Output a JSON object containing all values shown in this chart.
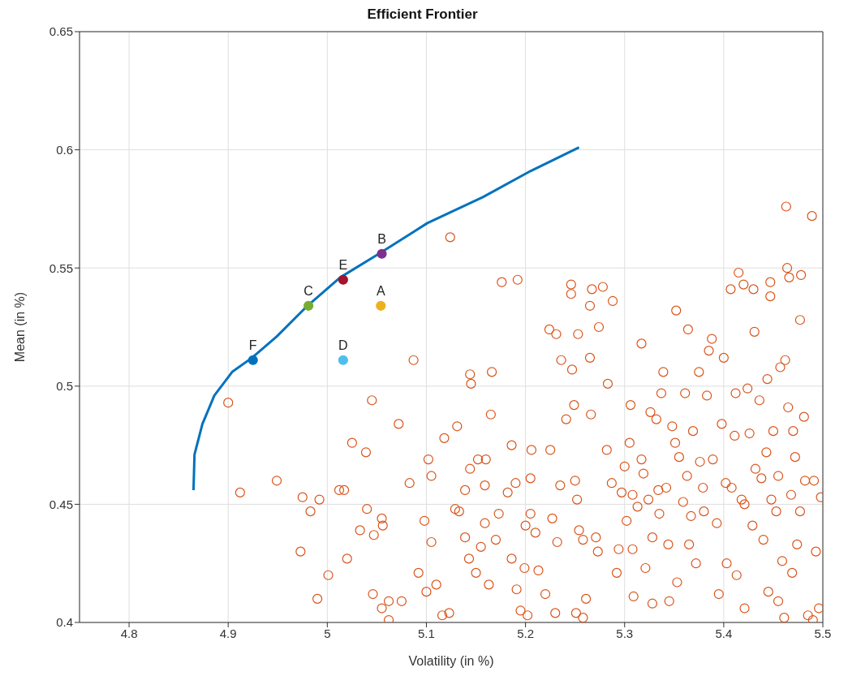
{
  "chart_data": {
    "type": "scatter",
    "title": "Efficient Frontier",
    "xlabel": "Volatility (in %)",
    "ylabel": "Mean (in %)",
    "xlim": [
      4.75,
      5.5
    ],
    "xticks": [
      4.8,
      4.9,
      5,
      5.1,
      5.2,
      5.3,
      5.4,
      5.5
    ],
    "ylim": [
      0.4,
      0.65
    ],
    "yticks": [
      0.4,
      0.45,
      0.5,
      0.55,
      0.6,
      0.65
    ],
    "grid": true,
    "legend": false,
    "series": [
      {
        "type": "line",
        "color": "#0072bd",
        "marker": "none",
        "x": [
          4.865,
          4.866,
          4.874,
          4.886,
          4.904,
          4.924,
          4.949,
          4.98,
          5.013,
          5.052,
          5.101,
          5.157,
          5.205,
          5.254
        ],
        "values": [
          0.456,
          0.471,
          0.484,
          0.496,
          0.506,
          0.512,
          0.521,
          0.534,
          0.546,
          0.556,
          0.569,
          0.58,
          0.591,
          0.601
        ]
      },
      {
        "color": "#d95319",
        "marker": "circle",
        "x": [
          4.9,
          4.912,
          4.949,
          4.975,
          4.973,
          4.983,
          4.992,
          4.99,
          5.001,
          5.012,
          5.017,
          5.02,
          5.025,
          5.033,
          5.039,
          5.04,
          5.045,
          5.047,
          5.046,
          5.055,
          5.056,
          5.055,
          5.062,
          5.062,
          5.072,
          5.075,
          5.083,
          5.087,
          5.092,
          5.098,
          5.1,
          5.102,
          5.105,
          5.105,
          5.11,
          5.116,
          5.118,
          5.124,
          5.123,
          5.129,
          5.131,
          5.133,
          5.139,
          5.139,
          5.143,
          5.144,
          5.145,
          5.144,
          5.15,
          5.152,
          5.155,
          5.159,
          5.16,
          5.159,
          5.163,
          5.166,
          5.165,
          5.17,
          5.173,
          5.176,
          5.182,
          5.186,
          5.186,
          5.19,
          5.192,
          5.191,
          5.195,
          5.199,
          5.2,
          5.202,
          5.205,
          5.205,
          5.206,
          5.21,
          5.213,
          5.22,
          5.224,
          5.225,
          5.227,
          5.231,
          5.23,
          5.232,
          5.236,
          5.235,
          5.241,
          5.246,
          5.246,
          5.247,
          5.249,
          5.25,
          5.252,
          5.253,
          5.251,
          5.254,
          5.258,
          5.258,
          5.261,
          5.265,
          5.267,
          5.265,
          5.266,
          5.271,
          5.273,
          5.274,
          5.278,
          5.282,
          5.283,
          5.287,
          5.288,
          5.292,
          5.294,
          5.297,
          5.3,
          5.302,
          5.305,
          5.306,
          5.308,
          5.308,
          5.309,
          5.313,
          5.317,
          5.317,
          5.319,
          5.321,
          5.324,
          5.326,
          5.328,
          5.328,
          5.332,
          5.334,
          5.335,
          5.337,
          5.339,
          5.342,
          5.344,
          5.345,
          5.348,
          5.351,
          5.352,
          5.353,
          5.355,
          5.359,
          5.361,
          5.363,
          5.364,
          5.365,
          5.367,
          5.369,
          5.372,
          5.375,
          5.376,
          5.379,
          5.38,
          5.383,
          5.385,
          5.388,
          5.389,
          5.393,
          5.395,
          5.398,
          5.4,
          5.402,
          5.403,
          5.407,
          5.408,
          5.411,
          5.412,
          5.413,
          5.415,
          5.418,
          5.42,
          5.421,
          5.421,
          5.424,
          5.426,
          5.429,
          5.43,
          5.431,
          5.432,
          5.436,
          5.438,
          5.44,
          5.443,
          5.444,
          5.445,
          5.447,
          5.447,
          5.448,
          5.45,
          5.453,
          5.455,
          5.455,
          5.457,
          5.459,
          5.461,
          5.462,
          5.463,
          5.464,
          5.465,
          5.466,
          5.468,
          5.469,
          5.47,
          5.472,
          5.474,
          5.477,
          5.477,
          5.478,
          5.481,
          5.482,
          5.485,
          5.489,
          5.49,
          5.491,
          5.493,
          5.496,
          5.498
        ],
        "values": [
          0.493,
          0.455,
          0.46,
          0.453,
          0.43,
          0.447,
          0.452,
          0.41,
          0.42,
          0.456,
          0.456,
          0.427,
          0.476,
          0.439,
          0.472,
          0.448,
          0.494,
          0.437,
          0.412,
          0.444,
          0.441,
          0.406,
          0.409,
          0.401,
          0.484,
          0.409,
          0.459,
          0.511,
          0.421,
          0.443,
          0.413,
          0.469,
          0.462,
          0.434,
          0.416,
          0.403,
          0.478,
          0.563,
          0.404,
          0.448,
          0.483,
          0.447,
          0.436,
          0.456,
          0.427,
          0.505,
          0.501,
          0.465,
          0.421,
          0.469,
          0.432,
          0.442,
          0.469,
          0.458,
          0.416,
          0.506,
          0.488,
          0.435,
          0.446,
          0.544,
          0.455,
          0.427,
          0.475,
          0.459,
          0.545,
          0.414,
          0.405,
          0.423,
          0.441,
          0.403,
          0.461,
          0.446,
          0.473,
          0.438,
          0.422,
          0.412,
          0.524,
          0.473,
          0.444,
          0.522,
          0.404,
          0.434,
          0.511,
          0.458,
          0.486,
          0.543,
          0.539,
          0.507,
          0.492,
          0.46,
          0.452,
          0.522,
          0.404,
          0.439,
          0.435,
          0.402,
          0.41,
          0.534,
          0.541,
          0.512,
          0.488,
          0.436,
          0.43,
          0.525,
          0.542,
          0.473,
          0.501,
          0.459,
          0.536,
          0.421,
          0.431,
          0.455,
          0.466,
          0.443,
          0.476,
          0.492,
          0.454,
          0.431,
          0.411,
          0.449,
          0.518,
          0.469,
          0.463,
          0.423,
          0.452,
          0.489,
          0.436,
          0.408,
          0.486,
          0.456,
          0.446,
          0.497,
          0.506,
          0.457,
          0.433,
          0.409,
          0.483,
          0.476,
          0.532,
          0.417,
          0.47,
          0.451,
          0.497,
          0.462,
          0.524,
          0.433,
          0.445,
          0.481,
          0.425,
          0.506,
          0.468,
          0.457,
          0.447,
          0.496,
          0.515,
          0.52,
          0.469,
          0.442,
          0.412,
          0.484,
          0.512,
          0.459,
          0.425,
          0.541,
          0.457,
          0.479,
          0.497,
          0.42,
          0.548,
          0.452,
          0.543,
          0.45,
          0.406,
          0.499,
          0.48,
          0.441,
          0.541,
          0.523,
          0.465,
          0.494,
          0.461,
          0.435,
          0.472,
          0.503,
          0.413,
          0.544,
          0.538,
          0.452,
          0.481,
          0.447,
          0.409,
          0.462,
          0.508,
          0.426,
          0.402,
          0.511,
          0.576,
          0.55,
          0.491,
          0.546,
          0.454,
          0.421,
          0.481,
          0.47,
          0.433,
          0.447,
          0.528,
          0.547,
          0.487,
          0.46,
          0.403,
          0.572,
          0.401,
          0.46,
          0.43,
          0.406,
          0.453
        ]
      },
      {
        "name": "A",
        "color": "#edb120",
        "marker": "circle",
        "x": [
          5.054
        ],
        "values": [
          0.534
        ]
      },
      {
        "name": "B",
        "color": "#7e2f8e",
        "marker": "circle",
        "x": [
          5.055
        ],
        "values": [
          0.556
        ]
      },
      {
        "name": "C",
        "color": "#77ac30",
        "marker": "circle",
        "x": [
          4.981
        ],
        "values": [
          0.534
        ]
      },
      {
        "name": "D",
        "color": "#4dbeee",
        "marker": "circle",
        "x": [
          5.016
        ],
        "values": [
          0.511
        ]
      },
      {
        "name": "E",
        "color": "#a2142f",
        "marker": "circle",
        "x": [
          5.016
        ],
        "values": [
          0.545
        ]
      },
      {
        "name": "F",
        "color": "#0072bd",
        "marker": "circle",
        "x": [
          4.925
        ],
        "values": [
          0.511
        ]
      }
    ]
  }
}
